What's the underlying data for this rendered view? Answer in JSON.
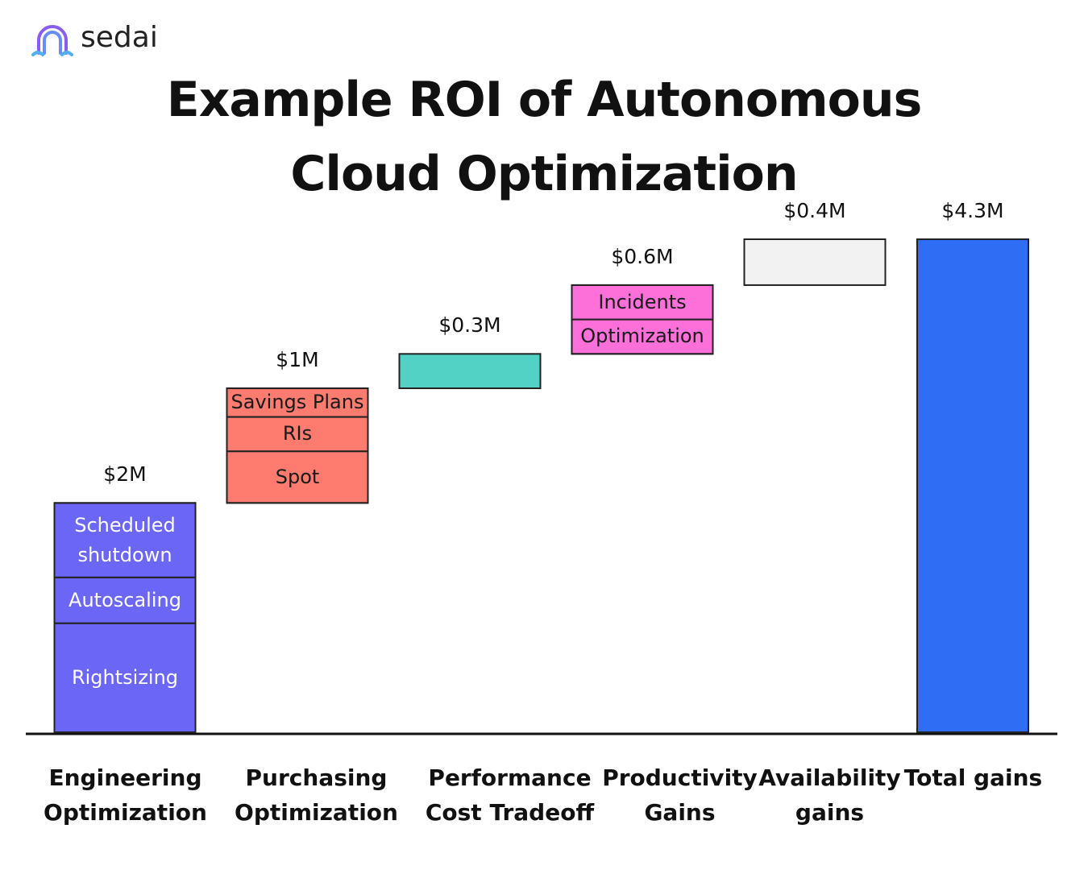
{
  "logo": "sedai",
  "chart_data": {
    "type": "waterfall",
    "title": "Example ROI of Autonomous Cloud Optimization",
    "categories": [
      "Engineering Optimization",
      "Purchasing Optimization",
      "Performance Cost Tradeoff",
      "Productivity Gains",
      "Availability gains",
      "Total gains"
    ],
    "values": [
      2,
      1,
      0.3,
      0.6,
      0.4,
      4.3
    ],
    "value_labels": [
      "$2M",
      "$1M",
      "$0.3M",
      "$0.6M",
      "$0.4M",
      "$4.3M"
    ],
    "is_total": [
      false,
      false,
      false,
      false,
      false,
      true
    ],
    "colors": [
      "#6c66f6",
      "#fd7c6f",
      "#52d1c5",
      "#fd6fd9",
      "#f2f2f2",
      "#306df5"
    ],
    "segment_text_colors": [
      "#ffffff",
      "#1a1a1a",
      "#1a1a1a",
      "#1a1a1a",
      "#1a1a1a",
      "#ffffff"
    ],
    "segments": [
      [
        {
          "name": "Scheduled shutdown",
          "value": 0.65
        },
        {
          "name": "Autoscaling",
          "value": 0.4
        },
        {
          "name": "Rightsizing",
          "value": 0.95
        }
      ],
      [
        {
          "name": "Savings Plans",
          "value": 0.25
        },
        {
          "name": "RIs",
          "value": 0.3
        },
        {
          "name": "Spot",
          "value": 0.45
        }
      ],
      [],
      [
        {
          "name": "Incidents",
          "value": 0.3
        },
        {
          "name": "Optimization",
          "value": 0.3
        }
      ],
      [],
      []
    ]
  }
}
